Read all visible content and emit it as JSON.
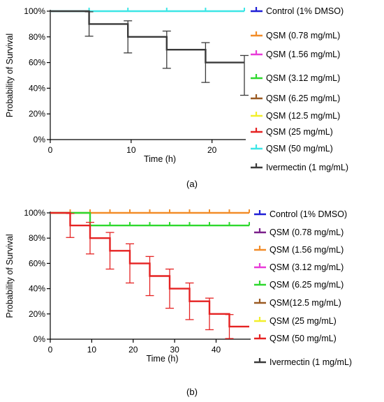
{
  "chart_data": [
    {
      "type": "line",
      "panel_label": "(a)",
      "title": "",
      "xlabel": "Time (h)",
      "ylabel": "Probability of Survival",
      "xlim": [
        0,
        24
      ],
      "ylim": [
        0,
        100
      ],
      "x_ticks": [
        0,
        10,
        20
      ],
      "y_ticks": [
        0,
        20,
        40,
        60,
        80,
        100
      ],
      "y_tick_suffix": "%",
      "grid": false,
      "legend_position": "right",
      "legend": [
        {
          "name": "Control (1% DMSO)",
          "color": "#1f1fd6"
        },
        {
          "name": "QSM (0.78 mg/mL)",
          "color": "#f28c28"
        },
        {
          "name": "QSM (1.56 mg/mL)",
          "color": "#e83ad8"
        },
        {
          "name": "QSM (3.12 mg/mL)",
          "color": "#2ed82e"
        },
        {
          "name": "QSM (6.25 mg/mL)",
          "color": "#9a5a22"
        },
        {
          "name": "QSM (12.5 mg/mL)",
          "color": "#f2ef2a"
        },
        {
          "name": "QSM (25 mg/mL)",
          "color": "#e52222"
        },
        {
          "name": "QSM (50 mg/mL)",
          "color": "#3de6e6"
        },
        {
          "name": "Ivermectin (1 mg/mL)",
          "color": "#3a3a3a"
        }
      ],
      "series": [
        {
          "color": "#3de6e6",
          "steps": [
            [
              0,
              100
            ],
            [
              24,
              100
            ]
          ],
          "censor": [
            4.8,
            9.6,
            14.4,
            19.2,
            24
          ]
        },
        {
          "color": "#3a3a3a",
          "steps": [
            [
              0,
              100
            ],
            [
              4.8,
              90
            ],
            [
              9.6,
              80
            ],
            [
              14.4,
              70
            ],
            [
              19.2,
              60
            ],
            [
              24,
              60
            ]
          ],
          "error_bars": [
            {
              "x": 4.8,
              "low": 80.5,
              "high": 99.5
            },
            {
              "x": 9.6,
              "low": 67.5,
              "high": 92.5
            },
            {
              "x": 14.4,
              "low": 55.5,
              "high": 84.5
            },
            {
              "x": 19.2,
              "low": 44.5,
              "high": 75.5
            },
            {
              "x": 24,
              "low": 34.5,
              "high": 65.5
            }
          ]
        }
      ]
    },
    {
      "type": "line",
      "panel_label": "(b)",
      "title": "",
      "xlabel": "Time (h)",
      "ylabel": "Probability of Survival",
      "xlim": [
        0,
        48
      ],
      "ylim": [
        0,
        100
      ],
      "x_ticks": [
        0,
        10,
        20,
        30,
        40
      ],
      "y_ticks": [
        0,
        20,
        40,
        60,
        80,
        100
      ],
      "y_tick_suffix": "%",
      "grid": false,
      "legend_position": "right",
      "legend": [
        {
          "name": "Control (1% DMSO)",
          "color": "#1f1fd6"
        },
        {
          "name": "QSM (0.78 mg/mL)",
          "color": "#7a1f8a"
        },
        {
          "name": "QSM (1.56 mg/mL)",
          "color": "#f28c28"
        },
        {
          "name": "QSM (3.12 mg/mL)",
          "color": "#e83ad8"
        },
        {
          "name": "QSM (6.25 mg/mL)",
          "color": "#2ed82e"
        },
        {
          "name": "QSM(12.5 mg/mL)",
          "color": "#9a5a22"
        },
        {
          "name": "QSM (25 mg/mL)",
          "color": "#f2ef2a"
        },
        {
          "name": "QSM (50 mg/mL)",
          "color": "#e52222"
        },
        {
          "name": "Ivermectin (1 mg/mL)",
          "color": "#3a3a3a"
        }
      ],
      "series": [
        {
          "color": "#f28c28",
          "steps": [
            [
              0,
              100
            ],
            [
              48,
              100
            ]
          ],
          "censor": [
            4.8,
            9.6,
            14.4,
            19.2,
            24,
            28.8,
            33.6,
            38.4,
            43.2,
            48
          ]
        },
        {
          "color": "#2ed82e",
          "steps": [
            [
              0,
              100
            ],
            [
              9.6,
              90
            ],
            [
              48,
              90
            ]
          ],
          "censor": [
            14.4,
            19.2,
            24,
            28.8,
            33.6,
            38.4,
            43.2,
            48
          ]
        },
        {
          "color": "#e52222",
          "steps": [
            [
              0,
              100
            ],
            [
              4.8,
              90
            ],
            [
              9.6,
              80
            ],
            [
              14.4,
              70
            ],
            [
              19.2,
              60
            ],
            [
              24,
              50
            ],
            [
              28.8,
              40
            ],
            [
              33.6,
              30
            ],
            [
              38.4,
              20
            ],
            [
              43.2,
              10
            ],
            [
              48,
              10
            ]
          ],
          "error_bars": [
            {
              "x": 4.8,
              "low": 80.5,
              "high": 99.5
            },
            {
              "x": 9.6,
              "low": 67.5,
              "high": 92.5
            },
            {
              "x": 14.4,
              "low": 55.5,
              "high": 84.5
            },
            {
              "x": 19.2,
              "low": 44.5,
              "high": 75.5
            },
            {
              "x": 24,
              "low": 34.5,
              "high": 65.5
            },
            {
              "x": 28.8,
              "low": 24.5,
              "high": 55.5
            },
            {
              "x": 33.6,
              "low": 15.5,
              "high": 44.5
            },
            {
              "x": 38.4,
              "low": 7.5,
              "high": 32.5
            },
            {
              "x": 43.2,
              "low": 0.5,
              "high": 19.5
            }
          ]
        }
      ]
    }
  ]
}
